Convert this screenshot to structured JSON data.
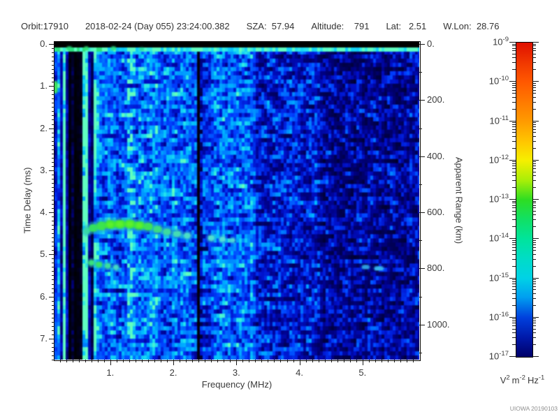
{
  "header": {
    "items": [
      "Orbit:17910",
      "2018-02-24 (Day 055) 23:24:00.382",
      "SZA:  57.94",
      "Altitude:    791",
      "Lat:   2.51",
      "W.Lon:  28.76"
    ],
    "meta": {
      "orbit": "17910",
      "date": "2018-02-24",
      "day_of_year": "055",
      "time": "23:24:00.382",
      "sza": "57.94",
      "altitude": "791",
      "lat": "2.51",
      "w_lon": "28.76"
    }
  },
  "credit": "UIOWA 20190103",
  "chart_data": {
    "type": "heatmap",
    "description": "Radar sounder ionogram/spectrogram: spectral density vs frequency and time delay. Blue noise background, darker/sparser above ~3.3 MHz; black absorption bands near 0.33-0.53 MHz and 2.4 MHz; bright cyan line at top (t~0.1 ms); bright green ionospheric echo trace near 4.3-4.7 ms from ~0.6 to ~3.0 MHz; weaker second echo near 5.2-5.3 ms at 0.7-1.1 MHz; faint cyan patch near 800 km apparent range at 5.0-5.4 MHz.",
    "xlabel": "Frequency (MHz)",
    "ylabel_left": "Time Delay (ms)",
    "ylabel_right": "Apparent Range (km)",
    "x_range_mhz": [
      0.115,
      5.9
    ],
    "y_range_ms": [
      -0.05,
      7.5
    ],
    "y_right_range_km": [
      -7.5,
      1125
    ],
    "x_major_ticks": [
      [
        1,
        "1."
      ],
      [
        2,
        "2."
      ],
      [
        3,
        "3."
      ],
      [
        4,
        "4."
      ],
      [
        5,
        "5."
      ]
    ],
    "x_minor_step_mhz": 0.1,
    "y_major_ticks": [
      [
        0,
        "0."
      ],
      [
        1,
        "1."
      ],
      [
        2,
        "2."
      ],
      [
        3,
        "3."
      ],
      [
        4,
        "4."
      ],
      [
        5,
        "5."
      ],
      [
        6,
        "6."
      ],
      [
        7,
        "7."
      ]
    ],
    "y_minor_step_ms": 0.1,
    "y_right_major_ticks": [
      [
        0,
        "0."
      ],
      [
        200,
        "200."
      ],
      [
        400,
        "400."
      ],
      [
        600,
        "600."
      ],
      [
        800,
        "800."
      ],
      [
        1000,
        "1000."
      ]
    ],
    "y_right_minor_step_km": 100,
    "colorbar": {
      "scale": "log",
      "top_value": "1e-9",
      "bottom_value": "1e-17",
      "tick_exponents": [
        -9,
        -10,
        -11,
        -12,
        -13,
        -14,
        -15,
        -16,
        -17
      ],
      "unit_parts": [
        [
          "V",
          "2"
        ],
        [
          "m",
          "-2"
        ],
        [
          "Hz",
          "-1"
        ]
      ],
      "gradient": [
        [
          0.0,
          "#df1000"
        ],
        [
          0.07,
          "#f23b00"
        ],
        [
          0.125,
          "#ff5800"
        ],
        [
          0.25,
          "#ff9a00"
        ],
        [
          0.32,
          "#ffc900"
        ],
        [
          0.375,
          "#f6ef00"
        ],
        [
          0.44,
          "#a6ee08"
        ],
        [
          0.5,
          "#2edd22"
        ],
        [
          0.56,
          "#12e062"
        ],
        [
          0.625,
          "#00e49c"
        ],
        [
          0.69,
          "#00dcc8"
        ],
        [
          0.75,
          "#00d2e6"
        ],
        [
          0.81,
          "#009ff0"
        ],
        [
          0.875,
          "#0040dd"
        ],
        [
          0.94,
          "#0018a8"
        ],
        [
          1.0,
          "#000068"
        ]
      ]
    },
    "noise_ramp": [
      [
        0.0,
        "#000000"
      ],
      [
        0.1,
        "#000030"
      ],
      [
        0.22,
        "#000080"
      ],
      [
        0.35,
        "#0010c8"
      ],
      [
        0.5,
        "#0040ff"
      ],
      [
        0.65,
        "#0080ff"
      ],
      [
        0.8,
        "#00b8ff"
      ],
      [
        0.9,
        "#20e0f0"
      ],
      [
        1.0,
        "#60ffc0"
      ]
    ],
    "features": {
      "top_surface_line": {
        "t_ms": 0.12,
        "f0": 0.115,
        "f1": 5.9,
        "color": "#15cfee"
      },
      "dark_bands_mhz": [
        [
          0.33,
          0.54
        ],
        [
          2.37,
          2.44
        ]
      ],
      "bright_lines_mhz": [
        0.255,
        0.6,
        1.3,
        1.47
      ],
      "echo_trace": [
        [
          0.63,
          4.44,
          0.1,
          0.16,
          "#38d8a8"
        ],
        [
          0.73,
          4.37,
          0.13,
          0.18,
          "#35e060"
        ],
        [
          0.86,
          4.32,
          0.15,
          0.2,
          "#3ce44e"
        ],
        [
          1.0,
          4.29,
          0.16,
          0.2,
          "#44e838"
        ],
        [
          1.15,
          4.28,
          0.17,
          0.2,
          "#48ea34"
        ],
        [
          1.31,
          4.28,
          0.17,
          0.2,
          "#44e838"
        ],
        [
          1.46,
          4.31,
          0.16,
          0.19,
          "#40e642"
        ],
        [
          1.6,
          4.34,
          0.14,
          0.18,
          "#3ee256"
        ],
        [
          1.75,
          4.4,
          0.13,
          0.16,
          "#3cde80"
        ],
        [
          1.9,
          4.46,
          0.12,
          0.15,
          "#3eda9e"
        ],
        [
          2.06,
          4.51,
          0.12,
          0.14,
          "#44dcb4"
        ],
        [
          2.22,
          4.55,
          0.11,
          0.13,
          "#4cdec6"
        ],
        [
          2.6,
          4.61,
          0.1,
          0.13,
          "#52e0d0"
        ],
        [
          2.78,
          4.64,
          0.09,
          0.12,
          "#55e0d6"
        ],
        [
          2.94,
          4.66,
          0.07,
          0.1,
          "#50d8d4"
        ]
      ],
      "second_echo": [
        [
          0.7,
          5.2,
          0.09,
          0.13,
          "#38e080"
        ],
        [
          0.82,
          5.24,
          0.1,
          0.14,
          "#36e468"
        ],
        [
          0.96,
          5.27,
          0.09,
          0.13,
          "#3ce09a"
        ],
        [
          1.09,
          5.31,
          0.08,
          0.12,
          "#46dcc0"
        ]
      ],
      "blobs": [
        [
          0.135,
          1.03,
          0.05,
          0.3,
          "#3ee05a"
        ],
        [
          5.05,
          5.3,
          0.13,
          0.1,
          "#2f9fe0"
        ],
        [
          5.26,
          5.33,
          0.15,
          0.1,
          "#38b4ec"
        ],
        [
          0.35,
          0.11,
          0.1,
          0.08,
          "#2ce080"
        ],
        [
          0.62,
          0.11,
          0.08,
          0.08,
          "#30e47a"
        ],
        [
          1.05,
          0.11,
          0.09,
          0.08,
          "#2ee08a"
        ],
        [
          1.5,
          0.12,
          0.07,
          0.07,
          "#28dca0"
        ]
      ]
    }
  }
}
